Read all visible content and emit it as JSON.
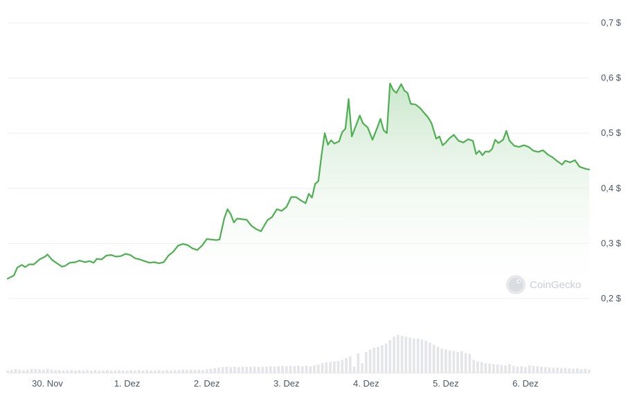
{
  "chart_data": {
    "type": "area",
    "ylim": [
      0.2,
      0.72
    ],
    "y_ticks": [
      {
        "value": 0.2,
        "label": "0,2 $"
      },
      {
        "value": 0.3,
        "label": "0,3 $"
      },
      {
        "value": 0.4,
        "label": "0,4 $"
      },
      {
        "value": 0.5,
        "label": "0,5 $"
      },
      {
        "value": 0.6,
        "label": "0,6 $"
      },
      {
        "value": 0.7,
        "label": "0,7 $"
      }
    ],
    "x_ticks": [
      {
        "t": 0.5,
        "label": "30. Nov"
      },
      {
        "t": 1.5,
        "label": "1. Dez"
      },
      {
        "t": 2.5,
        "label": "2. Dez"
      },
      {
        "t": 3.5,
        "label": "3. Dez"
      },
      {
        "t": 4.5,
        "label": "4. Dez"
      },
      {
        "t": 5.5,
        "label": "5. Dez"
      },
      {
        "t": 6.5,
        "label": "6. Dez"
      }
    ],
    "grid": true,
    "x_unit": "days (30. Nov = 0.5)",
    "price_series": [
      [
        0.0,
        0.236
      ],
      [
        0.08,
        0.242
      ],
      [
        0.12,
        0.256
      ],
      [
        0.18,
        0.261
      ],
      [
        0.22,
        0.257
      ],
      [
        0.27,
        0.262
      ],
      [
        0.33,
        0.262
      ],
      [
        0.4,
        0.271
      ],
      [
        0.47,
        0.276
      ],
      [
        0.5,
        0.28
      ],
      [
        0.56,
        0.27
      ],
      [
        0.62,
        0.264
      ],
      [
        0.68,
        0.258
      ],
      [
        0.72,
        0.259
      ],
      [
        0.78,
        0.265
      ],
      [
        0.85,
        0.266
      ],
      [
        0.9,
        0.269
      ],
      [
        0.97,
        0.266
      ],
      [
        1.03,
        0.268
      ],
      [
        1.08,
        0.265
      ],
      [
        1.12,
        0.272
      ],
      [
        1.18,
        0.271
      ],
      [
        1.24,
        0.278
      ],
      [
        1.3,
        0.279
      ],
      [
        1.36,
        0.276
      ],
      [
        1.42,
        0.277
      ],
      [
        1.48,
        0.281
      ],
      [
        1.54,
        0.279
      ],
      [
        1.6,
        0.273
      ],
      [
        1.66,
        0.271
      ],
      [
        1.72,
        0.268
      ],
      [
        1.78,
        0.265
      ],
      [
        1.84,
        0.266
      ],
      [
        1.9,
        0.264
      ],
      [
        1.96,
        0.266
      ],
      [
        2.02,
        0.278
      ],
      [
        2.08,
        0.285
      ],
      [
        2.14,
        0.296
      ],
      [
        2.2,
        0.299
      ],
      [
        2.26,
        0.297
      ],
      [
        2.32,
        0.291
      ],
      [
        2.38,
        0.288
      ],
      [
        2.44,
        0.296
      ],
      [
        2.5,
        0.308
      ],
      [
        2.56,
        0.307
      ],
      [
        2.62,
        0.306
      ],
      [
        2.66,
        0.307
      ],
      [
        2.72,
        0.346
      ],
      [
        2.76,
        0.362
      ],
      [
        2.8,
        0.353
      ],
      [
        2.84,
        0.338
      ],
      [
        2.88,
        0.345
      ],
      [
        2.94,
        0.344
      ],
      [
        3.0,
        0.343
      ],
      [
        3.06,
        0.332
      ],
      [
        3.12,
        0.326
      ],
      [
        3.18,
        0.322
      ],
      [
        3.26,
        0.342
      ],
      [
        3.32,
        0.348
      ],
      [
        3.38,
        0.362
      ],
      [
        3.44,
        0.359
      ],
      [
        3.5,
        0.366
      ],
      [
        3.56,
        0.384
      ],
      [
        3.62,
        0.384
      ],
      [
        3.68,
        0.378
      ],
      [
        3.74,
        0.373
      ],
      [
        3.78,
        0.39
      ],
      [
        3.82,
        0.383
      ],
      [
        3.86,
        0.408
      ],
      [
        3.9,
        0.413
      ],
      [
        3.94,
        0.46
      ],
      [
        3.98,
        0.5
      ],
      [
        4.02,
        0.479
      ],
      [
        4.06,
        0.487
      ],
      [
        4.1,
        0.481
      ],
      [
        4.16,
        0.485
      ],
      [
        4.2,
        0.502
      ],
      [
        4.24,
        0.508
      ],
      [
        4.28,
        0.562
      ],
      [
        4.32,
        0.494
      ],
      [
        4.36,
        0.509
      ],
      [
        4.42,
        0.532
      ],
      [
        4.46,
        0.518
      ],
      [
        4.52,
        0.51
      ],
      [
        4.58,
        0.488
      ],
      [
        4.64,
        0.51
      ],
      [
        4.68,
        0.526
      ],
      [
        4.72,
        0.505
      ],
      [
        4.76,
        0.5
      ],
      [
        4.8,
        0.59
      ],
      [
        4.84,
        0.578
      ],
      [
        4.88,
        0.573
      ],
      [
        4.94,
        0.589
      ],
      [
        4.98,
        0.577
      ],
      [
        5.02,
        0.573
      ],
      [
        5.06,
        0.553
      ],
      [
        5.12,
        0.552
      ],
      [
        5.18,
        0.545
      ],
      [
        5.22,
        0.538
      ],
      [
        5.28,
        0.528
      ],
      [
        5.32,
        0.518
      ],
      [
        5.38,
        0.49
      ],
      [
        5.42,
        0.494
      ],
      [
        5.46,
        0.478
      ],
      [
        5.5,
        0.483
      ],
      [
        5.54,
        0.49
      ],
      [
        5.6,
        0.497
      ],
      [
        5.66,
        0.486
      ],
      [
        5.72,
        0.483
      ],
      [
        5.78,
        0.489
      ],
      [
        5.84,
        0.486
      ],
      [
        5.88,
        0.462
      ],
      [
        5.92,
        0.468
      ],
      [
        5.96,
        0.46
      ],
      [
        6.0,
        0.467
      ],
      [
        6.04,
        0.466
      ],
      [
        6.08,
        0.471
      ],
      [
        6.12,
        0.488
      ],
      [
        6.16,
        0.482
      ],
      [
        6.22,
        0.488
      ],
      [
        6.26,
        0.504
      ],
      [
        6.3,
        0.486
      ],
      [
        6.36,
        0.477
      ],
      [
        6.42,
        0.475
      ],
      [
        6.48,
        0.478
      ],
      [
        6.54,
        0.475
      ],
      [
        6.6,
        0.468
      ],
      [
        6.66,
        0.466
      ],
      [
        6.72,
        0.469
      ],
      [
        6.78,
        0.461
      ],
      [
        6.84,
        0.456
      ],
      [
        6.9,
        0.449
      ],
      [
        6.96,
        0.443
      ],
      [
        7.0,
        0.45
      ],
      [
        7.06,
        0.447
      ],
      [
        7.12,
        0.451
      ],
      [
        7.18,
        0.439
      ],
      [
        7.26,
        0.435
      ],
      [
        7.3,
        0.434
      ]
    ],
    "volume_series": [
      [
        0.0,
        0.05
      ],
      [
        0.05,
        0.06
      ],
      [
        0.1,
        0.08
      ],
      [
        0.15,
        0.07
      ],
      [
        0.2,
        0.06
      ],
      [
        0.25,
        0.07
      ],
      [
        0.3,
        0.09
      ],
      [
        0.35,
        0.08
      ],
      [
        0.4,
        0.08
      ],
      [
        0.45,
        0.07
      ],
      [
        0.5,
        0.09
      ],
      [
        0.55,
        0.07
      ],
      [
        0.6,
        0.06
      ],
      [
        0.65,
        0.06
      ],
      [
        0.7,
        0.05
      ],
      [
        0.75,
        0.06
      ],
      [
        0.8,
        0.06
      ],
      [
        0.85,
        0.05
      ],
      [
        0.9,
        0.06
      ],
      [
        0.95,
        0.05
      ],
      [
        1.0,
        0.06
      ],
      [
        1.05,
        0.05
      ],
      [
        1.1,
        0.06
      ],
      [
        1.15,
        0.05
      ],
      [
        1.2,
        0.05
      ],
      [
        1.25,
        0.06
      ],
      [
        1.3,
        0.05
      ],
      [
        1.35,
        0.05
      ],
      [
        1.4,
        0.06
      ],
      [
        1.45,
        0.05
      ],
      [
        1.5,
        0.05
      ],
      [
        1.55,
        0.06
      ],
      [
        1.6,
        0.05
      ],
      [
        1.65,
        0.06
      ],
      [
        1.7,
        0.05
      ],
      [
        1.75,
        0.06
      ],
      [
        1.8,
        0.05
      ],
      [
        1.85,
        0.05
      ],
      [
        1.9,
        0.06
      ],
      [
        1.95,
        0.05
      ],
      [
        2.0,
        0.06
      ],
      [
        2.05,
        0.05
      ],
      [
        2.1,
        0.06
      ],
      [
        2.15,
        0.06
      ],
      [
        2.2,
        0.07
      ],
      [
        2.25,
        0.06
      ],
      [
        2.3,
        0.07
      ],
      [
        2.35,
        0.06
      ],
      [
        2.4,
        0.07
      ],
      [
        2.45,
        0.06
      ],
      [
        2.5,
        0.08
      ],
      [
        2.55,
        0.09
      ],
      [
        2.6,
        0.11
      ],
      [
        2.65,
        0.12
      ],
      [
        2.7,
        0.13
      ],
      [
        2.75,
        0.14
      ],
      [
        2.8,
        0.13
      ],
      [
        2.85,
        0.14
      ],
      [
        2.9,
        0.13
      ],
      [
        2.95,
        0.14
      ],
      [
        3.0,
        0.13
      ],
      [
        3.05,
        0.14
      ],
      [
        3.1,
        0.14
      ],
      [
        3.15,
        0.13
      ],
      [
        3.2,
        0.14
      ],
      [
        3.25,
        0.14
      ],
      [
        3.3,
        0.15
      ],
      [
        3.35,
        0.14
      ],
      [
        3.4,
        0.15
      ],
      [
        3.45,
        0.16
      ],
      [
        3.5,
        0.15
      ],
      [
        3.55,
        0.16
      ],
      [
        3.6,
        0.15
      ],
      [
        3.65,
        0.16
      ],
      [
        3.7,
        0.15
      ],
      [
        3.75,
        0.16
      ],
      [
        3.8,
        0.15
      ],
      [
        3.85,
        0.17
      ],
      [
        3.9,
        0.19
      ],
      [
        3.95,
        0.22
      ],
      [
        4.0,
        0.24
      ],
      [
        4.05,
        0.25
      ],
      [
        4.1,
        0.26
      ],
      [
        4.15,
        0.27
      ],
      [
        4.2,
        0.3
      ],
      [
        4.25,
        0.34
      ],
      [
        4.3,
        0.38
      ],
      [
        4.35,
        0.14
      ],
      [
        4.4,
        0.45
      ],
      [
        4.45,
        0.22
      ],
      [
        4.5,
        0.48
      ],
      [
        4.55,
        0.54
      ],
      [
        4.6,
        0.58
      ],
      [
        4.65,
        0.6
      ],
      [
        4.7,
        0.64
      ],
      [
        4.75,
        0.68
      ],
      [
        4.8,
        0.76
      ],
      [
        4.85,
        0.84
      ],
      [
        4.9,
        0.88
      ],
      [
        4.95,
        0.86
      ],
      [
        5.0,
        0.84
      ],
      [
        5.05,
        0.82
      ],
      [
        5.1,
        0.8
      ],
      [
        5.15,
        0.79
      ],
      [
        5.2,
        0.77
      ],
      [
        5.25,
        0.74
      ],
      [
        5.3,
        0.7
      ],
      [
        5.35,
        0.65
      ],
      [
        5.4,
        0.6
      ],
      [
        5.45,
        0.56
      ],
      [
        5.5,
        0.54
      ],
      [
        5.55,
        0.52
      ],
      [
        5.6,
        0.5
      ],
      [
        5.65,
        0.48
      ],
      [
        5.7,
        0.5
      ],
      [
        5.75,
        0.46
      ],
      [
        5.8,
        0.44
      ],
      [
        5.85,
        0.3
      ],
      [
        5.9,
        0.26
      ],
      [
        5.95,
        0.24
      ],
      [
        6.0,
        0.22
      ],
      [
        6.05,
        0.21
      ],
      [
        6.1,
        0.2
      ],
      [
        6.15,
        0.19
      ],
      [
        6.2,
        0.18
      ],
      [
        6.25,
        0.17
      ],
      [
        6.3,
        0.2
      ],
      [
        6.35,
        0.16
      ],
      [
        6.4,
        0.14
      ],
      [
        6.45,
        0.15
      ],
      [
        6.5,
        0.13
      ],
      [
        6.55,
        0.17
      ],
      [
        6.6,
        0.16
      ],
      [
        6.65,
        0.15
      ],
      [
        6.7,
        0.14
      ],
      [
        6.75,
        0.13
      ],
      [
        6.8,
        0.12
      ],
      [
        6.85,
        0.11
      ],
      [
        6.9,
        0.12
      ],
      [
        6.95,
        0.1
      ],
      [
        7.0,
        0.11
      ],
      [
        7.05,
        0.1
      ],
      [
        7.1,
        0.09
      ],
      [
        7.15,
        0.1
      ],
      [
        7.2,
        0.08
      ],
      [
        7.25,
        0.09
      ],
      [
        7.3,
        0.07
      ]
    ]
  },
  "watermark": {
    "text": "CoinGecko",
    "icon": "gecko-logo-icon"
  },
  "colors": {
    "line": "#4caf50",
    "area_top": "#c8e6c9",
    "grid": "#ecedef",
    "volume": "#e3e5e8"
  }
}
